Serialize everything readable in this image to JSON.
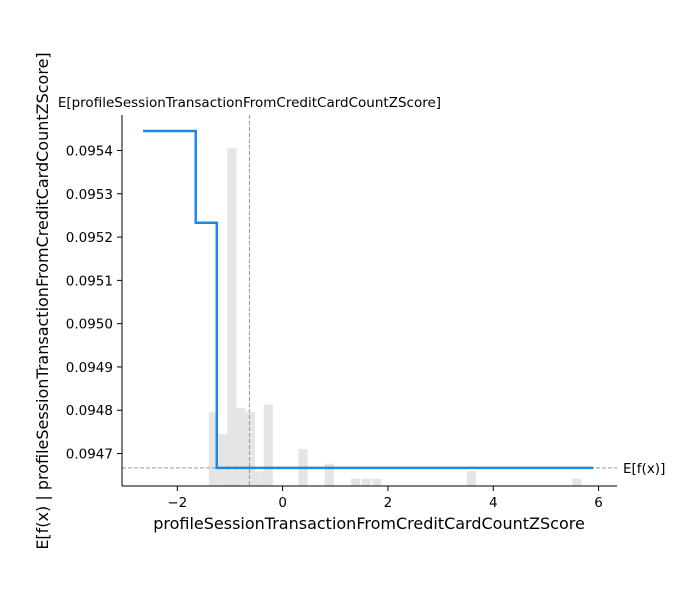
{
  "chart_data": {
    "type": "line",
    "xlabel": "profileSessionTransactionFromCreditCardCountZScore",
    "ylabel": "E[f(x) | profileSessionTransactionFromCreditCardCountZScore]",
    "xlim": [
      -3.05,
      6.35
    ],
    "ylim": [
      0.094625,
      0.095482
    ],
    "x_ticks": [
      -2,
      0,
      2,
      4,
      6
    ],
    "x_tick_labels": [
      "−2",
      "0",
      "2",
      "4",
      "6"
    ],
    "y_ticks": [
      0.0947,
      0.0948,
      0.0949,
      0.095,
      0.0951,
      0.0952,
      0.0953,
      0.0954
    ],
    "y_tick_labels": [
      "0.0947",
      "0.0948",
      "0.0949",
      "0.0950",
      "0.0951",
      "0.0952",
      "0.0953",
      "0.0954"
    ],
    "series": [
      {
        "color": "#1E88E5",
        "x": [
          -2.65,
          -1.75,
          -1.65,
          -1.65,
          -1.3,
          -1.25,
          -1.25,
          5.9
        ],
        "y": [
          0.095445,
          0.095445,
          0.095445,
          0.095233,
          0.095233,
          0.095233,
          0.094667,
          0.094667
        ]
      }
    ],
    "histogram": {
      "color": "#cccccc",
      "opacity": 0.5,
      "bin_width": 0.1744,
      "bin_starts": [
        -1.4,
        -1.22,
        -1.05,
        -0.88,
        -0.7,
        -0.53,
        -0.36,
        0.3,
        0.8,
        1.3,
        1.5,
        1.7,
        3.5,
        5.5
      ],
      "heights": [
        0.2,
        0.14,
        0.91,
        0.21,
        0.2,
        0.04,
        0.22,
        0.1,
        0.06,
        0.02,
        0.02,
        0.02,
        0.04,
        0.02
      ]
    },
    "reference_lines": {
      "expected_feature": {
        "value": -0.63,
        "label": "E[profileSessionTransactionFromCreditCardCountZScore]"
      },
      "expected_output": {
        "value": 0.094667,
        "label": "E[f(x)]"
      },
      "color": "#999999",
      "style": "dashed"
    },
    "grid": false,
    "legend": "none"
  }
}
